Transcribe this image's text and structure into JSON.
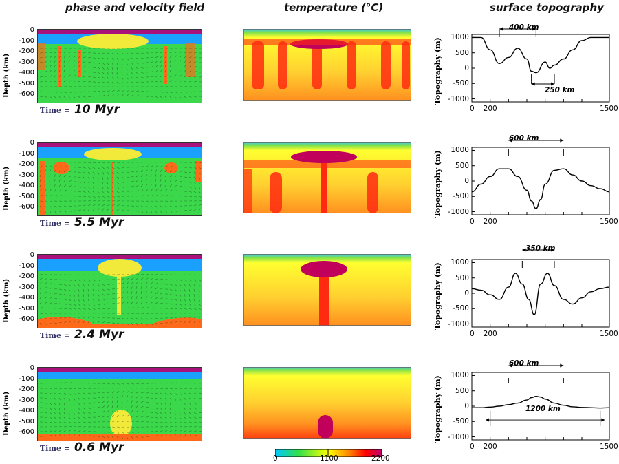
{
  "headers": {
    "phase": "phase and velocity field",
    "temperature": "temperature (°C)",
    "topography": "surface topography"
  },
  "depth_axis": {
    "label": "Depth (km)",
    "ticks": [
      "0",
      "-100",
      "-200",
      "-300",
      "-400",
      "-500",
      "-600"
    ]
  },
  "time_label": "Time =",
  "rows": [
    {
      "time": "10 Myr"
    },
    {
      "time": "5.5 Myr"
    },
    {
      "time": "2.4 Myr"
    },
    {
      "time": "0.6 Myr"
    }
  ],
  "colorbar": {
    "ticks": [
      "0",
      "1100",
      "2200"
    ],
    "colors": [
      "#00c8ff",
      "#33e04a",
      "#ffff00",
      "#ff8000",
      "#ff0000",
      "#c00070"
    ]
  },
  "colors": {
    "lid_magenta": "#a8127a",
    "lithosphere_blue": "#1aa0ff",
    "mantle_green": "#3ad84a",
    "melt_yellow": "#f2ea3a",
    "eclogite_orange": "#ff6a1a",
    "plume_core": "#c4005a"
  },
  "chart_data": [
    {
      "type": "line",
      "panel": "topography-10-myr",
      "ylabel": "Topography (m)",
      "yticks": [
        "1000",
        "500",
        "0",
        "-500",
        "-1000"
      ],
      "xticks": [
        "0",
        "200",
        "1500"
      ],
      "ylim": [
        -1100,
        1100
      ],
      "xlim": [
        0,
        1500
      ],
      "annotations": [
        "400 km",
        "250 km"
      ],
      "x": [
        0,
        100,
        200,
        300,
        400,
        500,
        600,
        650,
        700,
        800,
        850,
        900,
        1000,
        1100,
        1200,
        1300,
        1400,
        1500
      ],
      "y": [
        1000,
        1000,
        600,
        150,
        350,
        650,
        300,
        -100,
        -150,
        200,
        0,
        100,
        300,
        600,
        900,
        1000,
        1000,
        1000
      ]
    },
    {
      "type": "line",
      "panel": "topography-5.5-myr",
      "ylabel": "Topography (m)",
      "yticks": [
        "1000",
        "500",
        "0",
        "-500",
        "-1000"
      ],
      "xticks": [
        "0",
        "200",
        "1500"
      ],
      "ylim": [
        -1100,
        1100
      ],
      "xlim": [
        0,
        1500
      ],
      "annotations": [
        "600 km"
      ],
      "x": [
        0,
        100,
        200,
        300,
        400,
        500,
        600,
        650,
        700,
        750,
        800,
        900,
        1000,
        1100,
        1200,
        1300,
        1400,
        1500
      ],
      "y": [
        -350,
        -100,
        150,
        400,
        400,
        150,
        -300,
        -650,
        -900,
        -600,
        -100,
        350,
        400,
        200,
        0,
        -150,
        -250,
        -350
      ]
    },
    {
      "type": "line",
      "panel": "topography-2.4-myr",
      "ylabel": "Topography (m)",
      "yticks": [
        "1000",
        "500",
        "0",
        "-500",
        "-1000"
      ],
      "xticks": [
        "0",
        "200",
        "1500"
      ],
      "ylim": [
        -1100,
        1100
      ],
      "xlim": [
        0,
        1500
      ],
      "annotations": [
        "350 km"
      ],
      "x": [
        0,
        100,
        200,
        300,
        400,
        475,
        550,
        620,
        680,
        750,
        825,
        900,
        1000,
        1100,
        1200,
        1300,
        1400,
        1500
      ],
      "y": [
        150,
        100,
        -50,
        -200,
        200,
        650,
        300,
        -200,
        -700,
        300,
        650,
        250,
        -200,
        -350,
        -150,
        50,
        150,
        200
      ]
    },
    {
      "type": "line",
      "panel": "topography-0.6-myr",
      "ylabel": "Topography (m)",
      "yticks": [
        "1000",
        "500",
        "0",
        "-500",
        "-1000"
      ],
      "xticks": [
        "0",
        "200",
        "1500"
      ],
      "ylim": [
        -1100,
        1100
      ],
      "xlim": [
        0,
        1500
      ],
      "annotations": [
        "600 km",
        "1200 km"
      ],
      "x": [
        0,
        100,
        200,
        300,
        400,
        500,
        600,
        650,
        700,
        750,
        800,
        900,
        1000,
        1100,
        1200,
        1300,
        1400,
        1500
      ],
      "y": [
        -50,
        -50,
        -30,
        0,
        50,
        100,
        200,
        280,
        320,
        300,
        230,
        100,
        30,
        -20,
        -40,
        -50,
        -60,
        -50
      ]
    }
  ]
}
